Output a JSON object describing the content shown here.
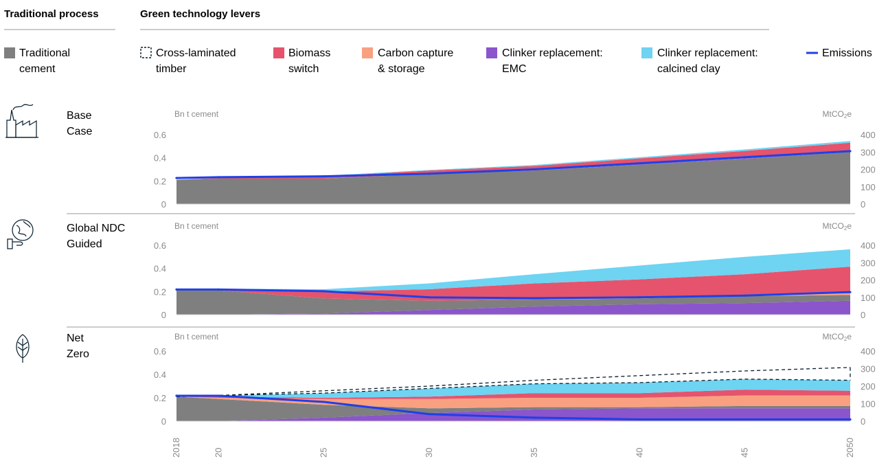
{
  "header": {
    "traditional": "Traditional process",
    "green": "Green technology levers"
  },
  "legend": [
    {
      "key": "traditional",
      "lines": [
        "Traditional",
        "cement"
      ],
      "color": "#7f7f7f",
      "swatch": "box"
    },
    {
      "key": "clt",
      "lines": [
        "Cross-laminated",
        "timber"
      ],
      "color": "#051c2c",
      "swatch": "dashed"
    },
    {
      "key": "biomass",
      "lines": [
        "Biomass",
        "switch"
      ],
      "color": "#e5546c",
      "swatch": "box"
    },
    {
      "key": "ccs",
      "lines": [
        "Carbon capture",
        "& storage"
      ],
      "color": "#f9a081",
      "swatch": "box"
    },
    {
      "key": "emc",
      "lines": [
        "Clinker replacement:",
        "EMC"
      ],
      "color": "#8b55cc",
      "swatch": "box"
    },
    {
      "key": "clay",
      "lines": [
        "Clinker replacement:",
        "calcined clay"
      ],
      "color": "#6fd3f2",
      "swatch": "box"
    },
    {
      "key": "emissions",
      "lines": [
        "Emissions",
        ""
      ],
      "color": "#1f40e6",
      "swatch": "line"
    }
  ],
  "left_unit": "Bn t cement",
  "right_unit_base": "MtCO",
  "right_unit_sub": "2",
  "right_unit_tail": "e",
  "left_ticks": [
    "0",
    "0.2",
    "0.4",
    "0.6"
  ],
  "right_ticks": [
    "0",
    "100",
    "200",
    "300",
    "400"
  ],
  "x_tick_labels": [
    "2018",
    "20",
    "25",
    "30",
    "35",
    "40",
    "45",
    "2050"
  ],
  "chart_data": [
    {
      "type": "area",
      "scenario_lines": [
        "Base",
        "Case"
      ],
      "icon": "factory-icon",
      "x": [
        2018,
        2020,
        2025,
        2030,
        2035,
        2040,
        2045,
        2050
      ],
      "ylim_left": [
        0,
        0.6
      ],
      "ylim_right": [
        0,
        400
      ],
      "y_left_label": "Bn t cement",
      "y_right_label": "MtCO2e",
      "series": [
        {
          "name": "Traditional cement",
          "values": [
            0.21,
            0.22,
            0.22,
            0.26,
            0.29,
            0.34,
            0.39,
            0.45
          ]
        },
        {
          "name": "Clinker replacement: EMC",
          "values": [
            0,
            0,
            0,
            0,
            0,
            0.005,
            0.005,
            0.005
          ]
        },
        {
          "name": "Carbon capture & storage",
          "values": [
            0,
            0,
            0,
            0,
            0,
            0,
            0.005,
            0.005
          ]
        },
        {
          "name": "Biomass switch",
          "values": [
            0,
            0.005,
            0.02,
            0.03,
            0.04,
            0.05,
            0.06,
            0.07
          ]
        },
        {
          "name": "Clinker replacement: calcined clay",
          "values": [
            0,
            0,
            0.005,
            0.005,
            0.008,
            0.01,
            0.012,
            0.015
          ]
        }
      ],
      "emissions": [
        150,
        155,
        160,
        175,
        200,
        235,
        270,
        305
      ]
    },
    {
      "type": "area",
      "scenario_lines": [
        "Global NDC",
        "Guided"
      ],
      "icon": "globe-hand-icon",
      "x": [
        2018,
        2020,
        2025,
        2030,
        2035,
        2040,
        2045,
        2050
      ],
      "ylim_left": [
        0,
        0.6
      ],
      "ylim_right": [
        0,
        400
      ],
      "y_left_label": "Bn t cement",
      "y_right_label": "MtCO2e",
      "series": [
        {
          "name": "Clinker replacement: EMC",
          "values": [
            0,
            0,
            0.01,
            0.04,
            0.07,
            0.09,
            0.1,
            0.12
          ]
        },
        {
          "name": "Traditional cement",
          "values": [
            0.21,
            0.21,
            0.13,
            0.08,
            0.06,
            0.05,
            0.06,
            0.05
          ]
        },
        {
          "name": "Carbon capture & storage",
          "values": [
            0,
            0,
            0,
            0,
            0,
            0.005,
            0.01,
            0.015
          ]
        },
        {
          "name": "Biomass switch",
          "values": [
            0,
            0.01,
            0.06,
            0.1,
            0.14,
            0.16,
            0.18,
            0.23
          ]
        },
        {
          "name": "Clinker replacement: calcined clay",
          "values": [
            0,
            0.005,
            0.02,
            0.05,
            0.08,
            0.12,
            0.15,
            0.15
          ]
        }
      ],
      "emissions": [
        145,
        145,
        135,
        100,
        95,
        100,
        110,
        130
      ]
    },
    {
      "type": "area",
      "scenario_lines": [
        "Net",
        "Zero"
      ],
      "icon": "leaf-icon",
      "x": [
        2018,
        2020,
        2025,
        2030,
        2035,
        2040,
        2045,
        2050
      ],
      "ylim_left": [
        0,
        0.6
      ],
      "ylim_right": [
        0,
        400
      ],
      "y_left_label": "Bn t cement",
      "y_right_label": "MtCO2e",
      "series": [
        {
          "name": "Clinker replacement: EMC",
          "values": [
            0,
            0,
            0.03,
            0.07,
            0.1,
            0.11,
            0.11,
            0.11
          ]
        },
        {
          "name": "Traditional cement",
          "values": [
            0.21,
            0.19,
            0.11,
            0.04,
            0.02,
            0.01,
            0.02,
            0.02
          ]
        },
        {
          "name": "Carbon capture & storage",
          "values": [
            0,
            0.01,
            0.05,
            0.08,
            0.08,
            0.08,
            0.09,
            0.09
          ]
        },
        {
          "name": "Biomass switch",
          "values": [
            0,
            0.01,
            0.01,
            0.02,
            0.04,
            0.04,
            0.05,
            0.04
          ]
        },
        {
          "name": "Clinker replacement: calcined clay",
          "values": [
            0,
            0.01,
            0.04,
            0.07,
            0.08,
            0.09,
            0.09,
            0.09
          ]
        }
      ],
      "cross_laminated_timber_total": [
        0.21,
        0.22,
        0.26,
        0.3,
        0.35,
        0.39,
        0.43,
        0.46
      ],
      "emissions": [
        145,
        145,
        110,
        40,
        20,
        10,
        10,
        10
      ]
    }
  ]
}
